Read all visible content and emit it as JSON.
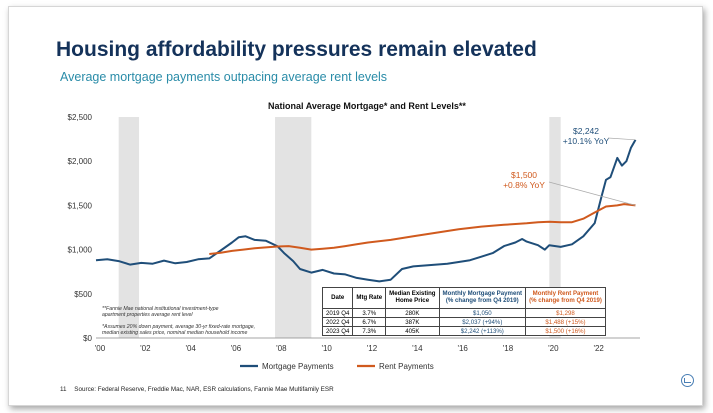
{
  "slide": {
    "title": "Housing affordability pressures remain elevated",
    "subtitle": "Average mortgage payments outpacing average rent levels",
    "page_number": "11",
    "source": "Source: Federal Reserve, Freddie Mac, NAR, ESR calculations, Fannie Mae Multifamily ESR"
  },
  "colors": {
    "mortgage": "#1f4e79",
    "rent": "#d05a1e",
    "recession": "#e3e3e3",
    "title": "#14325a",
    "subtitle": "#2a8ca8"
  },
  "notes": [
    "**Fannie Mae national institutional investment-type",
    "apartment properties average rent level",
    "*Assumes 20% down payment, average 30-yr fixed-rate mortgage,",
    "median existing sales price, nominal median household income"
  ],
  "chart_data": {
    "type": "line",
    "title": "National Average Mortgage* and Rent Levels**",
    "xlim": [
      2000,
      2023.8
    ],
    "ylim": [
      0,
      2500
    ],
    "x_ticks": [
      "'00",
      "'02",
      "'04",
      "'06",
      "'08",
      "'10",
      "'12",
      "'14",
      "'16",
      "'18",
      "'20",
      "'22"
    ],
    "y_ticks": [
      "$0",
      "$500",
      "$1,000",
      "$1,500",
      "$2,000",
      "$2,500"
    ],
    "recession_shading": [
      [
        2001.0,
        2001.9
      ],
      [
        2007.9,
        2009.5
      ],
      [
        2020.0,
        2020.5
      ]
    ],
    "legend_position": "bottom",
    "grid": false,
    "series": [
      {
        "name": "Mortgage Payments",
        "points": [
          [
            2000.0,
            880
          ],
          [
            2000.5,
            890
          ],
          [
            2001.0,
            870
          ],
          [
            2001.5,
            830
          ],
          [
            2002.0,
            850
          ],
          [
            2002.5,
            840
          ],
          [
            2003.0,
            875
          ],
          [
            2003.5,
            845
          ],
          [
            2004.0,
            860
          ],
          [
            2004.5,
            890
          ],
          [
            2005.0,
            900
          ],
          [
            2005.5,
            990
          ],
          [
            2006.0,
            1080
          ],
          [
            2006.3,
            1140
          ],
          [
            2006.6,
            1150
          ],
          [
            2007.0,
            1110
          ],
          [
            2007.5,
            1100
          ],
          [
            2008.0,
            1040
          ],
          [
            2008.3,
            960
          ],
          [
            2008.7,
            870
          ],
          [
            2009.0,
            780
          ],
          [
            2009.5,
            740
          ],
          [
            2010.0,
            770
          ],
          [
            2010.5,
            730
          ],
          [
            2011.0,
            720
          ],
          [
            2011.5,
            680
          ],
          [
            2012.0,
            660
          ],
          [
            2012.5,
            640
          ],
          [
            2013.0,
            660
          ],
          [
            2013.5,
            780
          ],
          [
            2014.0,
            810
          ],
          [
            2014.5,
            820
          ],
          [
            2015.0,
            830
          ],
          [
            2015.5,
            840
          ],
          [
            2016.0,
            860
          ],
          [
            2016.5,
            880
          ],
          [
            2017.0,
            920
          ],
          [
            2017.5,
            960
          ],
          [
            2018.0,
            1040
          ],
          [
            2018.5,
            1080
          ],
          [
            2018.8,
            1120
          ],
          [
            2019.0,
            1090
          ],
          [
            2019.5,
            1050
          ],
          [
            2019.8,
            1000
          ],
          [
            2020.0,
            1050
          ],
          [
            2020.5,
            1030
          ],
          [
            2021.0,
            1060
          ],
          [
            2021.5,
            1150
          ],
          [
            2022.0,
            1300
          ],
          [
            2022.3,
            1600
          ],
          [
            2022.5,
            1790
          ],
          [
            2022.7,
            1820
          ],
          [
            2023.0,
            2037
          ],
          [
            2023.2,
            1950
          ],
          [
            2023.4,
            2000
          ],
          [
            2023.6,
            2150
          ],
          [
            2023.8,
            2242
          ]
        ]
      },
      {
        "name": "Rent Payments",
        "points": [
          [
            2005.0,
            950
          ],
          [
            2005.5,
            965
          ],
          [
            2006.0,
            985
          ],
          [
            2006.5,
            1000
          ],
          [
            2007.0,
            1015
          ],
          [
            2007.5,
            1025
          ],
          [
            2008.0,
            1035
          ],
          [
            2008.5,
            1040
          ],
          [
            2009.0,
            1020
          ],
          [
            2009.5,
            1000
          ],
          [
            2010.0,
            1010
          ],
          [
            2010.5,
            1020
          ],
          [
            2011.0,
            1040
          ],
          [
            2011.5,
            1060
          ],
          [
            2012.0,
            1080
          ],
          [
            2013.0,
            1110
          ],
          [
            2014.0,
            1150
          ],
          [
            2015.0,
            1190
          ],
          [
            2016.0,
            1230
          ],
          [
            2017.0,
            1260
          ],
          [
            2018.0,
            1280
          ],
          [
            2019.0,
            1298
          ],
          [
            2019.5,
            1310
          ],
          [
            2020.0,
            1315
          ],
          [
            2020.5,
            1310
          ],
          [
            2021.0,
            1310
          ],
          [
            2021.5,
            1350
          ],
          [
            2022.0,
            1420
          ],
          [
            2022.5,
            1488
          ],
          [
            2023.0,
            1500
          ],
          [
            2023.3,
            1515
          ],
          [
            2023.8,
            1500
          ]
        ]
      }
    ],
    "annotations": [
      {
        "line1": "$2,242",
        "line2": "+10.1% YoY",
        "series": "Mortgage Payments"
      },
      {
        "line1": "$1,500",
        "line2": "+0.8% YoY",
        "series": "Rent Payments"
      }
    ],
    "table": {
      "headers": [
        "Date",
        "Mtg Rate",
        "Median Existing Home Price",
        "Monthly Mortgage Payment (% change from Q4 2019)",
        "Monthly Rent Payment (% change from Q4 2019)"
      ],
      "header_lines": [
        [
          "Date"
        ],
        [
          "Mtg Rate"
        ],
        [
          "Median Existing",
          "Home Price"
        ],
        [
          "Monthly Mortgage Payment",
          "(% change from Q4 2019)"
        ],
        [
          "Monthly Rent Payment",
          "(% change from Q4 2019)"
        ]
      ],
      "rows": [
        [
          "2019 Q4",
          "3.7%",
          "280K",
          "$1,050",
          "$1,298"
        ],
        [
          "2022 Q4",
          "6.7%",
          "387K",
          "$2,037 (+94%)",
          "$1,488 (+15%)"
        ],
        [
          "2023 Q4",
          "7.3%",
          "405K",
          "$2,242 (+113%)",
          "$1,500 (+16%)"
        ]
      ]
    }
  }
}
